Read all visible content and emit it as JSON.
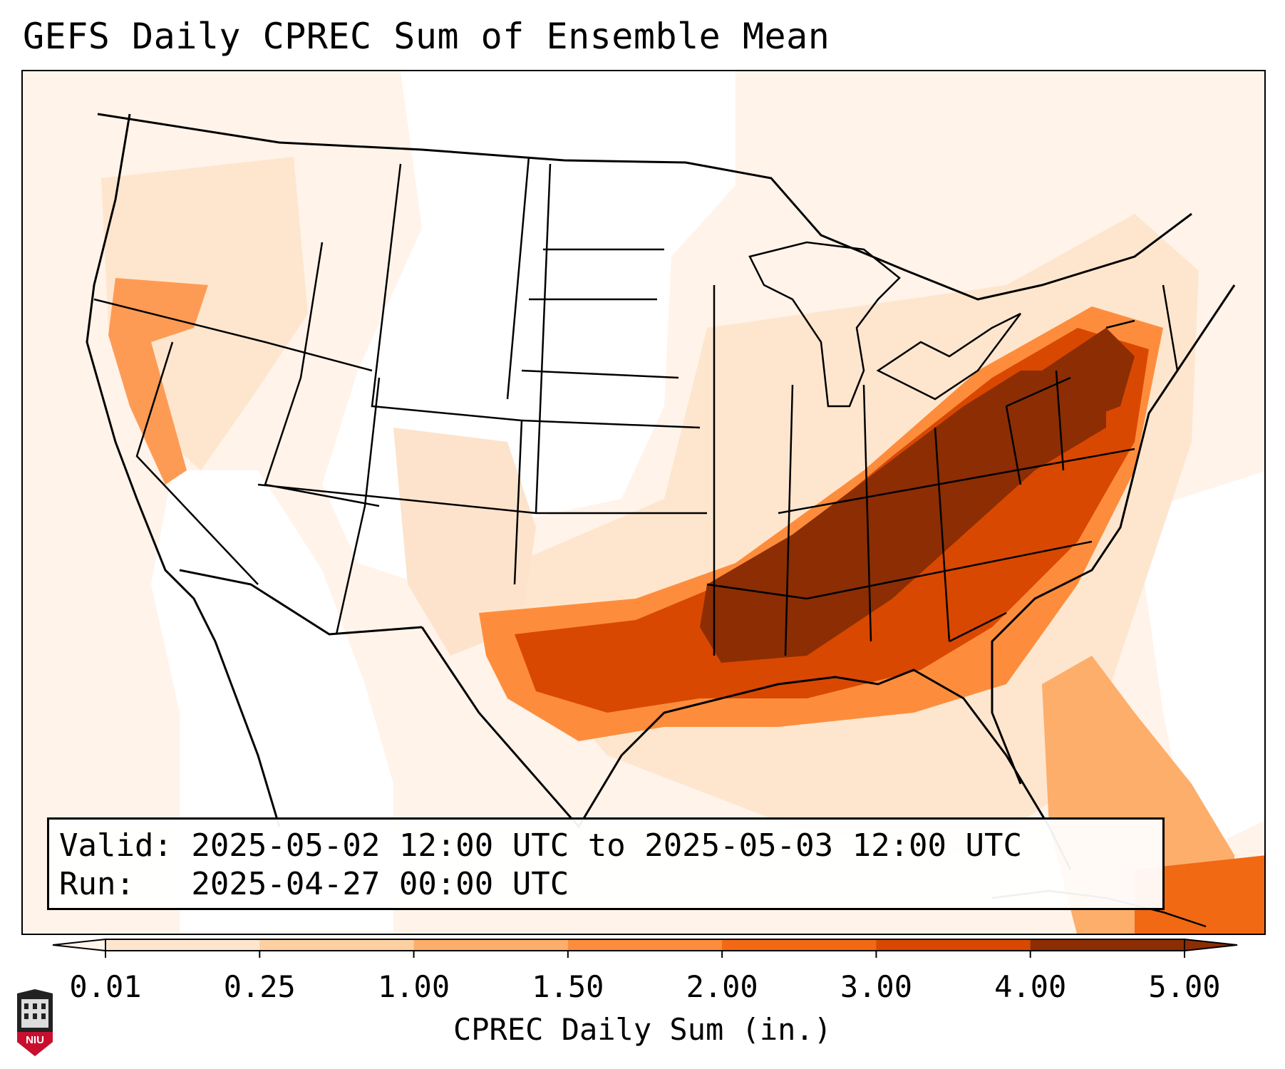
{
  "title": "GEFS Daily CPREC Sum of Ensemble Mean",
  "info": {
    "valid": "Valid: 2025-05-02 12:00 UTC to 2025-05-03 12:00 UTC",
    "run": "Run:   2025-04-27 00:00 UTC"
  },
  "colorbar": {
    "label": "CPREC Daily Sum (in.)",
    "ticks": [
      "0.01",
      "0.25",
      "1.00",
      "1.50",
      "2.00",
      "3.00",
      "4.00",
      "5.00"
    ],
    "colors": [
      "#fff5eb",
      "#fee6ce",
      "#fdd0a2",
      "#fdae6b",
      "#fd8d3c",
      "#f16913",
      "#d94801",
      "#8c2d04"
    ],
    "extend": "both"
  },
  "map": {
    "region": "CONUS",
    "colors": {
      "border": "#000000",
      "lowest": "#fff3ea",
      "none": "#ffffff"
    }
  },
  "logo": {
    "text": "NIU",
    "color": "#c8102e"
  }
}
